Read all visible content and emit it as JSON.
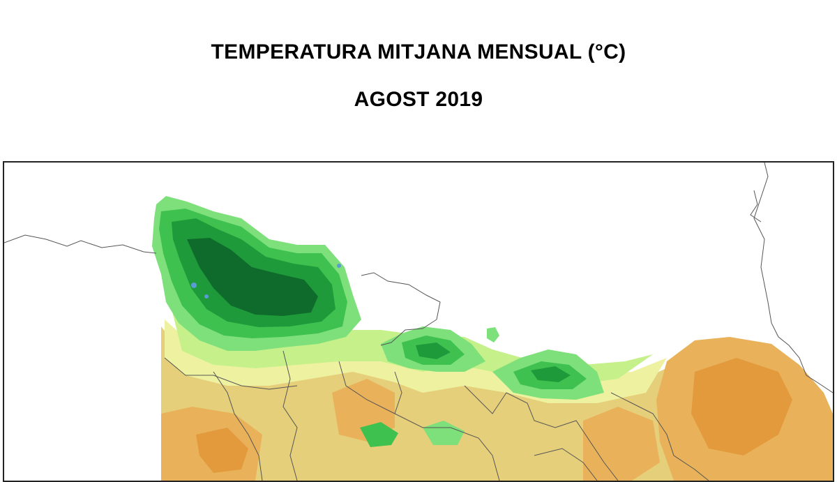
{
  "header": {
    "title": "TEMPERATURA MITJANA MENSUAL (°C)",
    "subtitle": "AGOST 2019"
  },
  "map": {
    "palette": {
      "very_cold": "#0f6b2c",
      "cold": "#1f9a3a",
      "cool": "#3fc14f",
      "mild_cool": "#7ee07a",
      "mild": "#c5f08a",
      "warm_light": "#eef2a0",
      "warm": "#e6cf7a",
      "hot": "#e9b25a",
      "very_hot": "#e29a3c",
      "water": "#5a9bd5",
      "border_line": "#555555"
    }
  }
}
